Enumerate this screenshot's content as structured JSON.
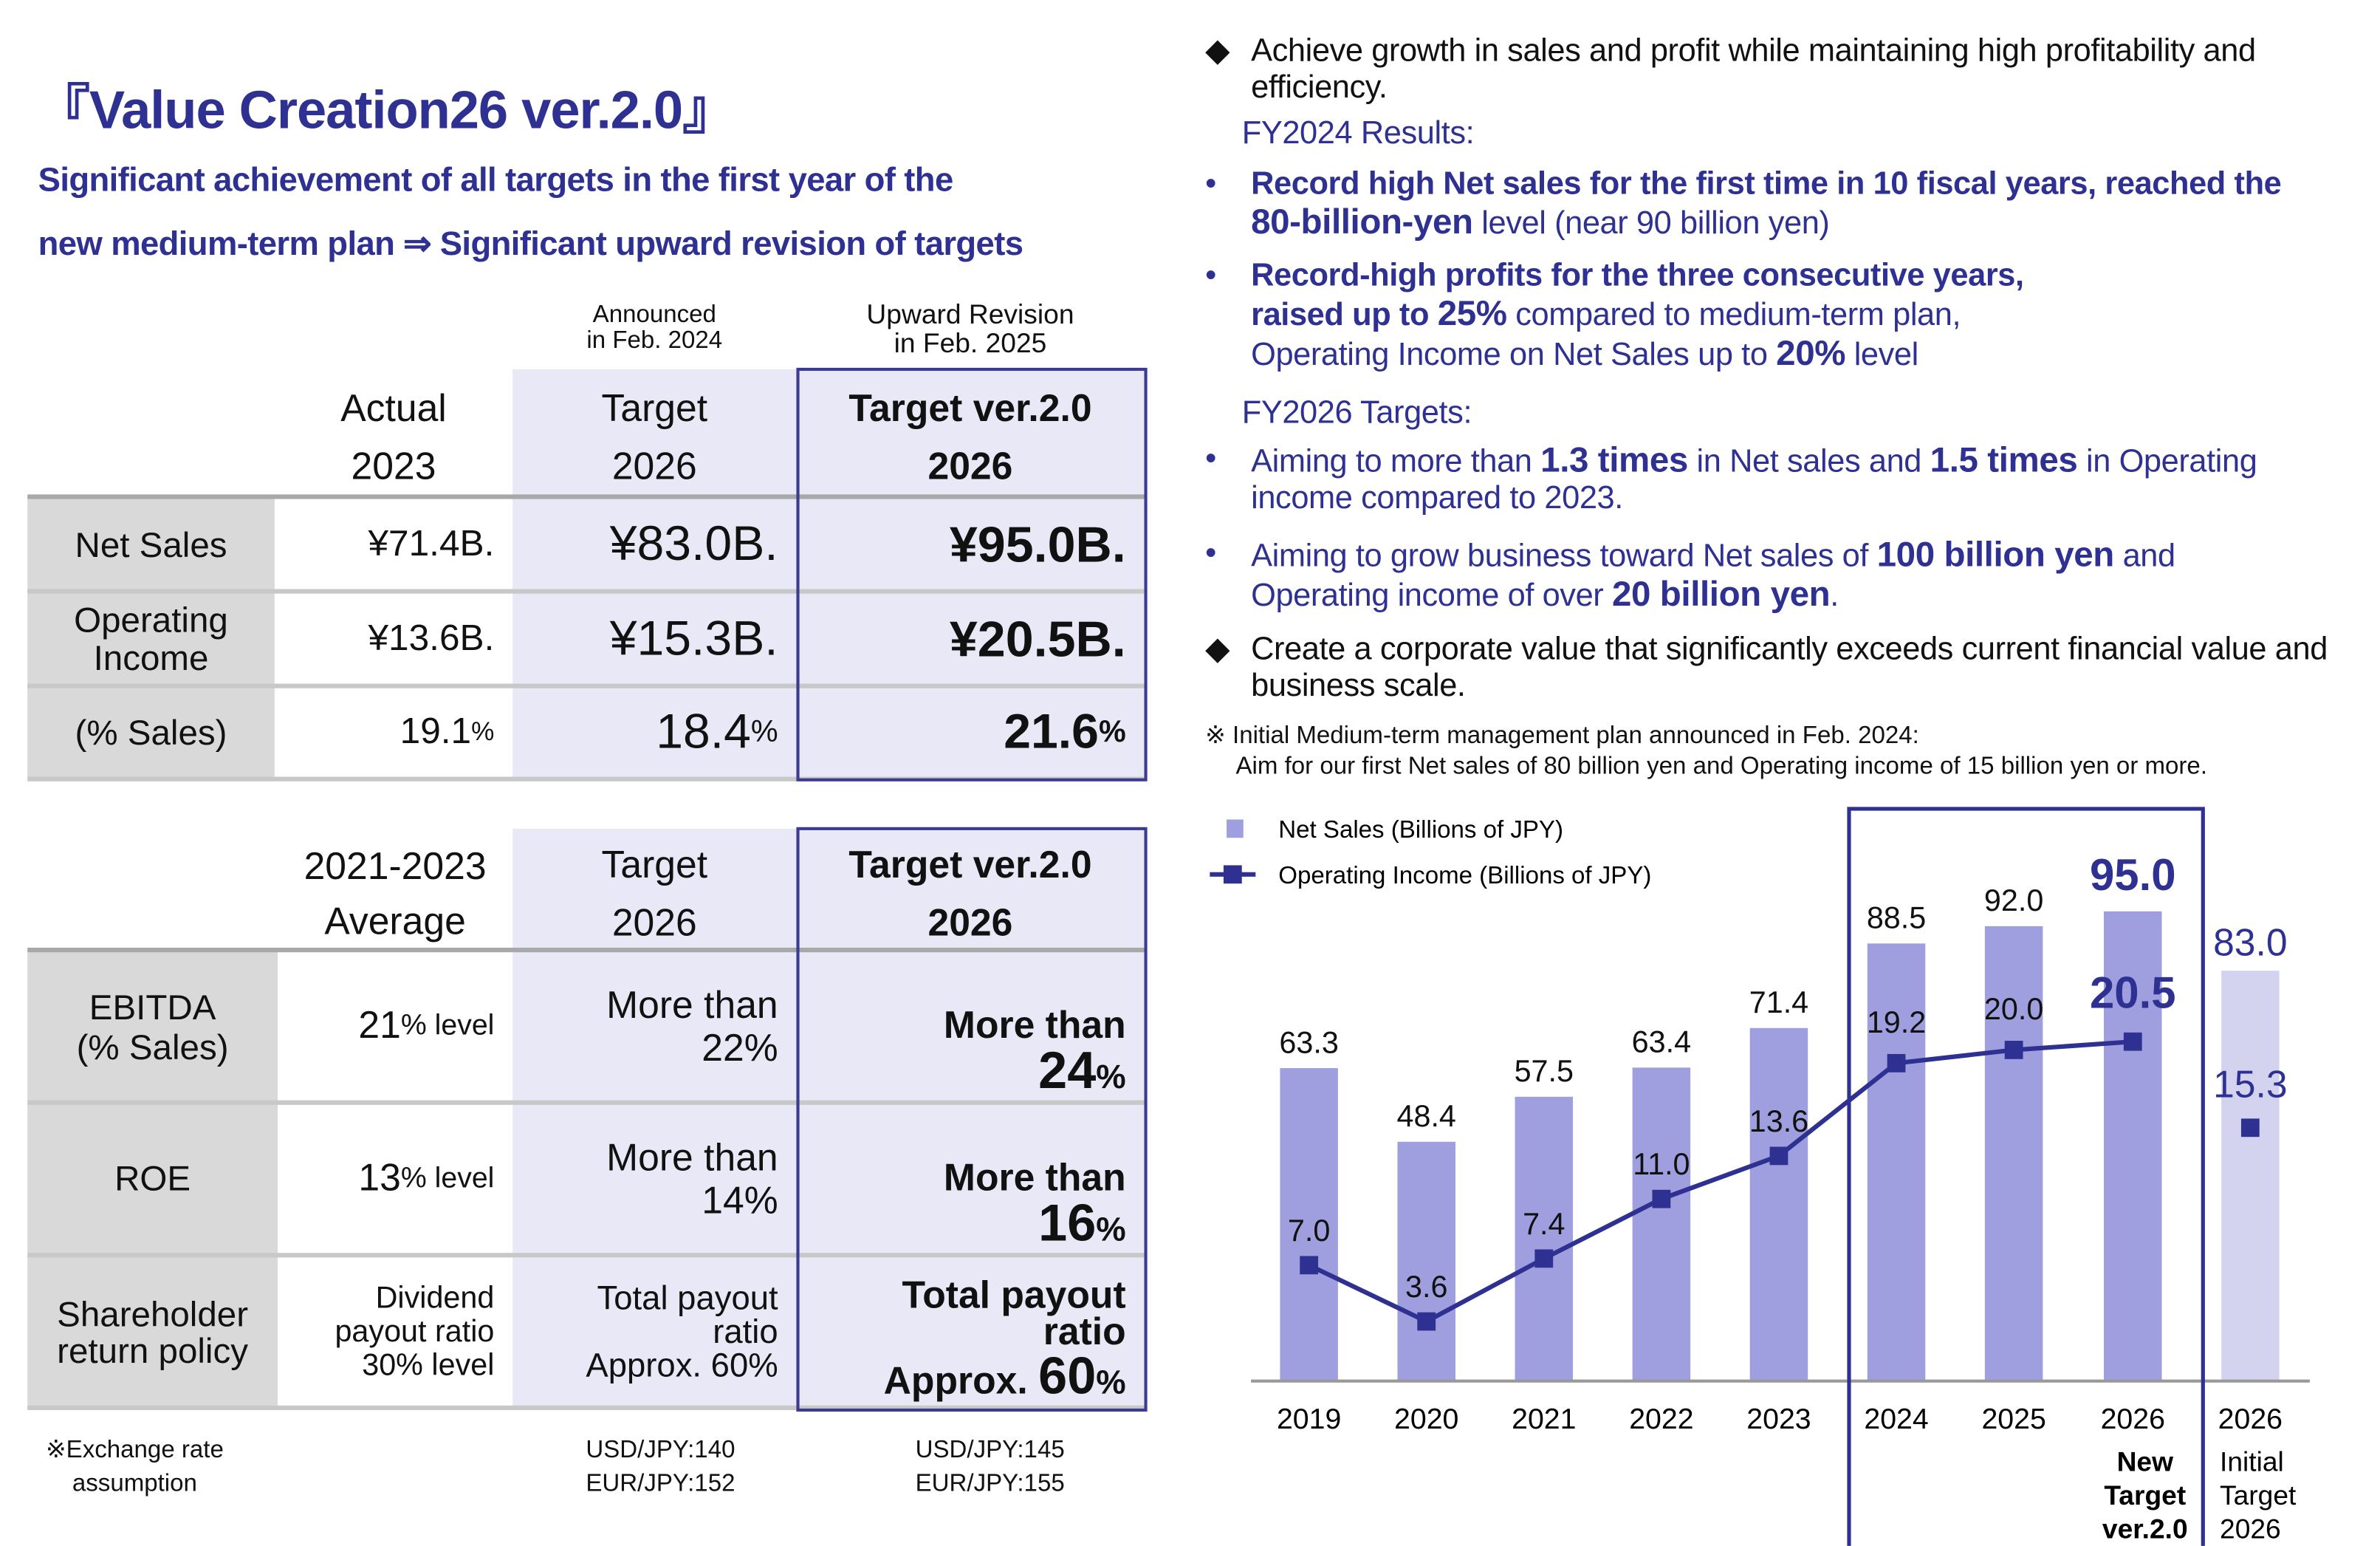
{
  "title": "『Value Creation26 ver.2.0』",
  "subtitle_line1": "Significant achievement of all targets in the first year of the",
  "subtitle_line2": "new medium-term plan  ⇒ Significant upward revision of targets",
  "colors": {
    "navy": "#2e3192",
    "bar": "#9f9fdf",
    "bar_initial": "#d3d3f0",
    "line": "#2e3192",
    "cell_gray": "#d9d9d9",
    "cell_lavender": "#e8e8f6"
  },
  "table1": {
    "announced_note": "Announced\nin Feb. 2024",
    "revision_note": "Upward Revision\nin Feb. 2025",
    "headers": [
      "Actual\n2023",
      "Target\n2026",
      "Target ver.2.0\n2026"
    ],
    "rows": [
      {
        "label": "Net Sales",
        "actual": "¥71.4B.",
        "target": "¥83.0B.",
        "v2": "¥95.0B."
      },
      {
        "label": "Operating\nIncome",
        "actual": "¥13.6B.",
        "target": "¥15.3B.",
        "v2": "¥20.5B."
      },
      {
        "label": "(% Sales)",
        "actual": "19.1",
        "target": "18.4",
        "v2": "21.6",
        "unit": "%"
      }
    ]
  },
  "table2": {
    "headers": [
      "2021-2023\nAverage",
      "Target\n2026",
      "Target ver.2.0\n2026"
    ],
    "rows": [
      {
        "label": "EBITDA\n(% Sales)",
        "actual_num": "21",
        "actual_unit": "% level",
        "target": "More than\n22%",
        "v2_top": "More than",
        "v2_num": "24",
        "v2_unit": "%"
      },
      {
        "label": "ROE",
        "actual_num": "13",
        "actual_unit": "% level",
        "target": "More than\n14%",
        "v2_top": "More than",
        "v2_num": "16",
        "v2_unit": "%"
      },
      {
        "label": "Shareholder\nreturn policy",
        "actual_text": "Dividend\npayout ratio\n30% level",
        "target": "Total payout\nratio\nApprox. 60%",
        "v2_top": "Total payout\nratio",
        "v2_prefix": "Approx. ",
        "v2_num": "60",
        "v2_unit": "%"
      }
    ]
  },
  "footnote": {
    "label": "※Exchange rate\nassumption",
    "target": "USD/JPY:140\nEUR/JPY:152",
    "v2": "USD/JPY:145\nEUR/JPY:155"
  },
  "right": {
    "point1": "Achieve growth in sales and profit while maintaining high profitability and efficiency.",
    "fy2024_heading": "FY2024 Results:",
    "fy2024_bullets": [
      [
        {
          "t": "Record high Net sales for the first time in 10 fiscal years, reached the ",
          "b": true
        },
        {
          "t": "80-billion-yen",
          "b": true,
          "big": true
        },
        {
          "t": " level  (near 90 billion yen)",
          "b": false
        }
      ],
      [
        {
          "t": "Record-high profits for the three consecutive years,",
          "b": true
        },
        {
          "t": "\n raised up to ",
          "b": true
        },
        {
          "t": "25%",
          "b": true,
          "big": true
        },
        {
          "t": " compared to medium-term plan,\nOperating Income on Net Sales up to ",
          "b": false
        },
        {
          "t": "20%",
          "b": true,
          "big": true
        },
        {
          "t": " level",
          "b": false
        }
      ]
    ],
    "fy2026_heading": "FY2026 Targets:",
    "fy2026_bullets": [
      [
        {
          "t": "Aiming to more than ",
          "b": false
        },
        {
          "t": "1.3 times",
          "b": true,
          "big": true
        },
        {
          "t": " in Net sales and ",
          "b": false
        },
        {
          "t": "1.5 times",
          "b": true,
          "big": true
        },
        {
          "t": " in Operating income compared to 2023.",
          "b": false
        }
      ],
      [
        {
          "t": "Aiming to grow business toward Net sales of ",
          "b": false
        },
        {
          "t": "100 billion yen",
          "b": true,
          "big": true
        },
        {
          "t": " and Operating income of over ",
          "b": false
        },
        {
          "t": "20 billion yen",
          "b": true,
          "big": true
        },
        {
          "t": ".",
          "b": false
        }
      ]
    ],
    "point2": "Create a corporate value that significantly exceeds current financial value and business scale.",
    "note_line1": "※ Initial Medium-term management plan announced in Feb. 2024:",
    "note_line2": "Aim for our first Net sales of 80 billion yen and Operating income of 15 billion yen or more."
  },
  "chart_data": {
    "type": "bar+line",
    "legend": [
      "Net Sales (Billions of JPY)",
      "Operating Income (Billions of JPY)"
    ],
    "legend_position": "top-left",
    "categories": [
      "2019",
      "2020",
      "2021",
      "2022",
      "2023",
      "2024",
      "2025",
      "2026",
      "2026"
    ],
    "category_sublabels": [
      "",
      "",
      "",
      "",
      "",
      "",
      "",
      "New\nTarget\nver.2.0",
      "Initial\nTarget\n2026"
    ],
    "series": [
      {
        "name": "Net Sales (Billions of JPY)",
        "type": "bar",
        "values": [
          63.3,
          48.4,
          57.5,
          63.4,
          71.4,
          88.5,
          92.0,
          95.0,
          83.0
        ],
        "labels": [
          "63.3",
          "48.4",
          "57.5",
          "63.4",
          "71.4",
          "88.5",
          "92.0",
          "95.0",
          "83.0"
        ]
      },
      {
        "name": "Operating Income (Billions of JPY)",
        "type": "line",
        "values": [
          7.0,
          3.6,
          7.4,
          11.0,
          13.6,
          19.2,
          20.0,
          20.5,
          15.3
        ],
        "labels": [
          "7.0",
          "3.6",
          "7.4",
          "11.0",
          "13.6",
          "19.2",
          "20.0",
          "20.5",
          "15.3"
        ]
      }
    ],
    "highlight_categories": [
      "2024",
      "2025",
      "2026 New Target ver.2.0"
    ],
    "grid": false
  }
}
